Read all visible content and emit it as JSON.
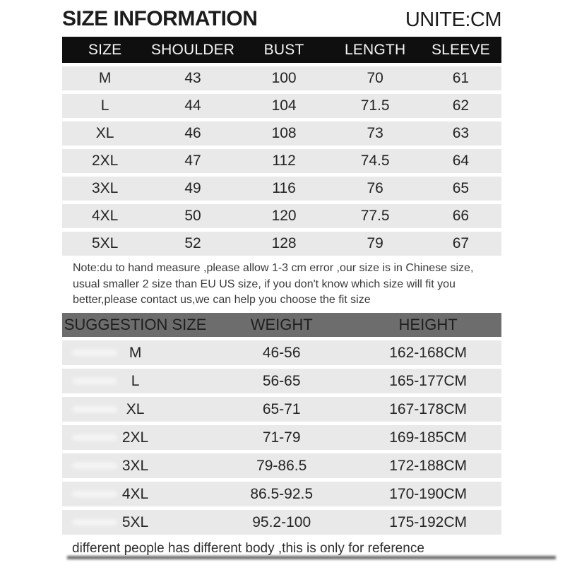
{
  "header": {
    "title": "SIZE INFORMATION",
    "unit": "UNITE:CM"
  },
  "size_table": {
    "headers": [
      "SIZE",
      "SHOULDER",
      "BUST",
      "LENGTH",
      "SLEEVE"
    ],
    "rows": [
      [
        "M",
        "43",
        "100",
        "70",
        "61"
      ],
      [
        "L",
        "44",
        "104",
        "71.5",
        "62"
      ],
      [
        "XL",
        "46",
        "108",
        "73",
        "63"
      ],
      [
        "2XL",
        "47",
        "112",
        "74.5",
        "64"
      ],
      [
        "3XL",
        "49",
        "116",
        "76",
        "65"
      ],
      [
        "4XL",
        "50",
        "120",
        "77.5",
        "66"
      ],
      [
        "5XL",
        "52",
        "128",
        "79",
        "67"
      ]
    ]
  },
  "note": {
    "line1": "Note:du to hand measure ,please allow 1-3 cm error ,our size is in Chinese size,",
    "line2": "usual smaller 2 size than EU US size, if you don't know which size will fit you",
    "line3": "better,please contact us,we can help you choose the fit size"
  },
  "suggestion_table": {
    "headers": [
      "SUGGESTION SIZE",
      "WEIGHT",
      "HEIGHT"
    ],
    "rows": [
      [
        "M",
        "46-56",
        "162-168CM"
      ],
      [
        "L",
        "56-65",
        "165-177CM"
      ],
      [
        "XL",
        "65-71",
        "167-178CM"
      ],
      [
        "2XL",
        "71-79",
        "169-185CM"
      ],
      [
        "3XL",
        "79-86.5",
        "172-188CM"
      ],
      [
        "4XL",
        "86.5-92.5",
        "170-190CM"
      ],
      [
        "5XL",
        "95.2-100",
        "175-192CM"
      ]
    ]
  },
  "footer": {
    "text": "different people has different body ,this is only for reference"
  },
  "colors": {
    "size_header_bg": "#0f0f0f",
    "size_header_text": "#f7f7f7",
    "row_stripe_bg": "#e9e9e9",
    "suggestion_header_bg": "#6d6d6d",
    "body_text": "#242424"
  }
}
